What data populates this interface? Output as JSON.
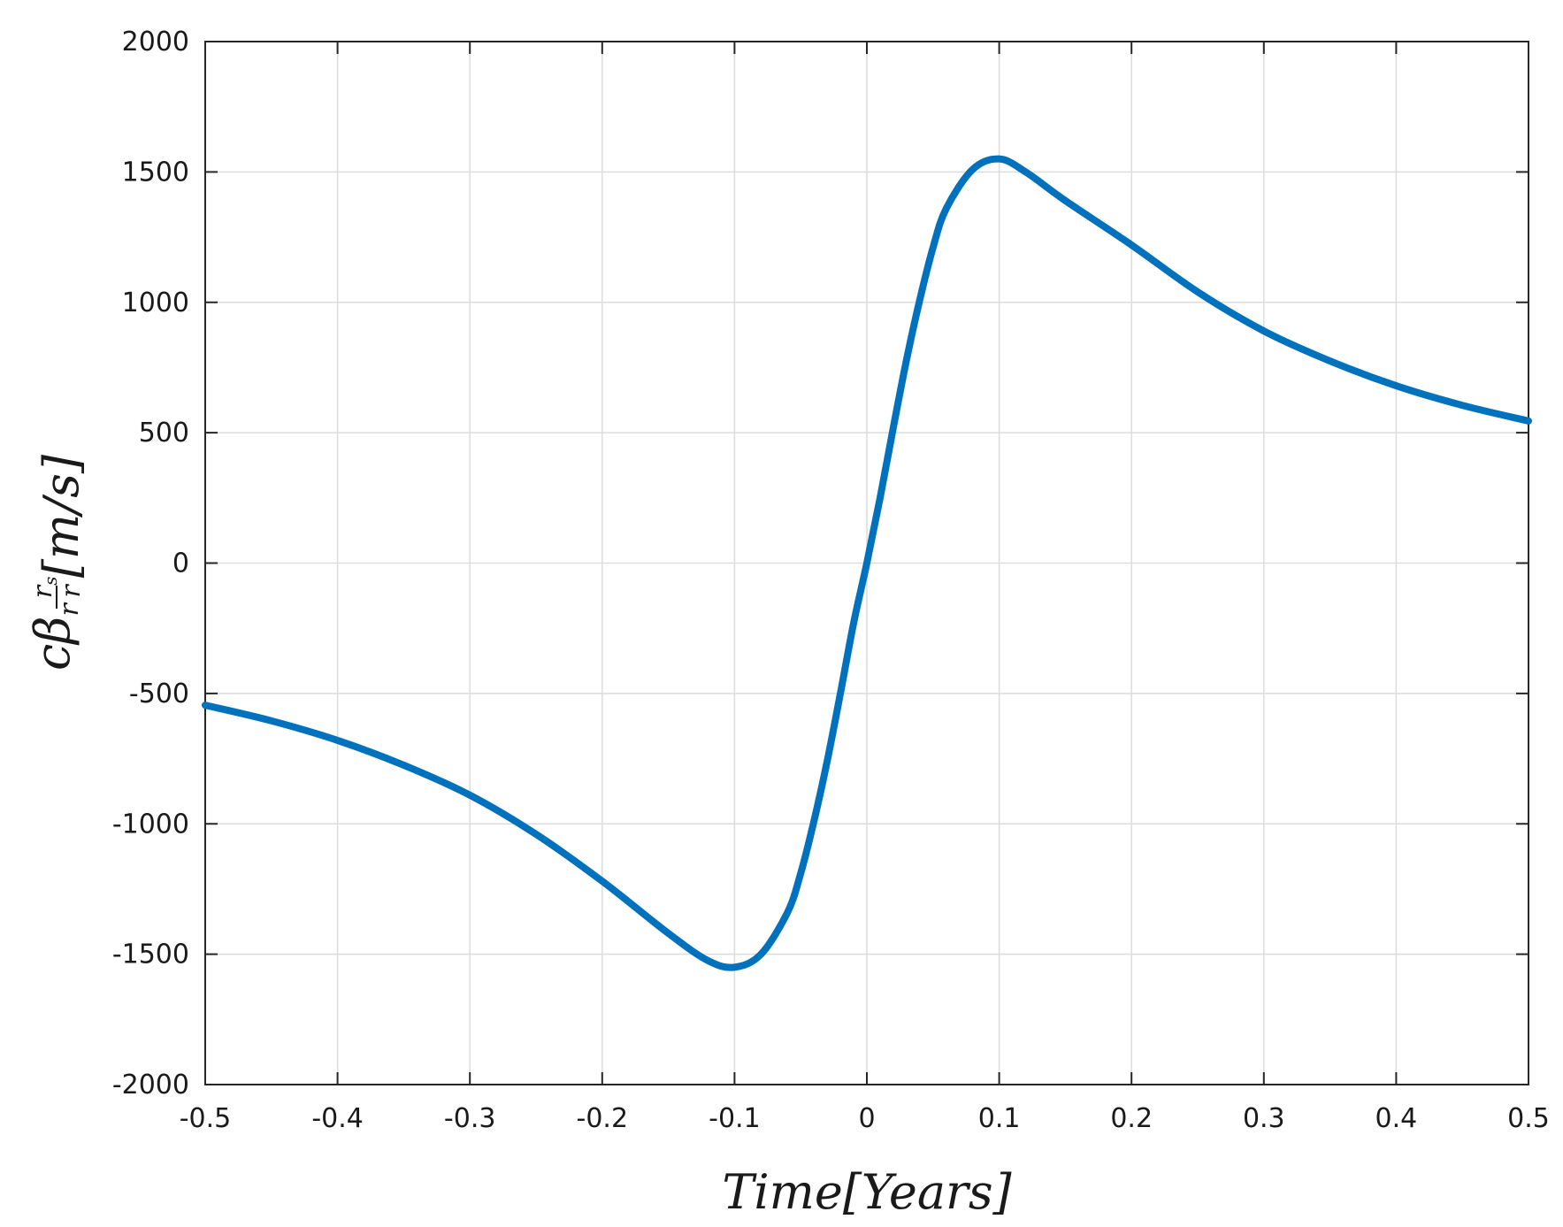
{
  "chart_data": {
    "type": "line",
    "xlabel": "Time[Years]",
    "ylabel": {
      "main": "cβ",
      "main_sub": "r",
      "frac_num": "r",
      "frac_num_sub": "s",
      "frac_den": "r",
      "units": "[m/s]"
    },
    "xlim": [
      -0.5,
      0.5
    ],
    "ylim": [
      -2000,
      2000
    ],
    "xticks": [
      -0.5,
      -0.4,
      -0.3,
      -0.2,
      -0.1,
      0,
      0.1,
      0.2,
      0.3,
      0.4,
      0.5
    ],
    "xtick_labels": [
      "-0.5",
      "-0.4",
      "-0.3",
      "-0.2",
      "-0.1",
      "0",
      "0.1",
      "0.2",
      "0.3",
      "0.4",
      "0.5"
    ],
    "yticks": [
      -2000,
      -1500,
      -1000,
      -500,
      0,
      500,
      1000,
      1500,
      2000
    ],
    "ytick_labels": [
      "-2000",
      "-1500",
      "-1000",
      "-500",
      "0",
      "500",
      "1000",
      "1500",
      "2000"
    ],
    "grid": true,
    "series": [
      {
        "color": "#0072BD",
        "x": [
          -0.5,
          -0.45,
          -0.4,
          -0.35,
          -0.3,
          -0.25,
          -0.2,
          -0.15,
          -0.12,
          -0.1,
          -0.08,
          -0.06,
          -0.05,
          -0.04,
          -0.03,
          -0.02,
          -0.01,
          0,
          0.01,
          0.02,
          0.03,
          0.04,
          0.05,
          0.06,
          0.08,
          0.1,
          0.12,
          0.15,
          0.2,
          0.25,
          0.3,
          0.35,
          0.4,
          0.45,
          0.5
        ],
        "y": [
          -545,
          -605,
          -680,
          -775,
          -890,
          -1040,
          -1220,
          -1420,
          -1525,
          -1550,
          -1500,
          -1340,
          -1190,
          -990,
          -760,
          -500,
          -230,
          0,
          250,
          520,
          780,
          1010,
          1210,
          1360,
          1510,
          1550,
          1500,
          1390,
          1220,
          1040,
          890,
          775,
          680,
          605,
          545
        ]
      }
    ]
  }
}
